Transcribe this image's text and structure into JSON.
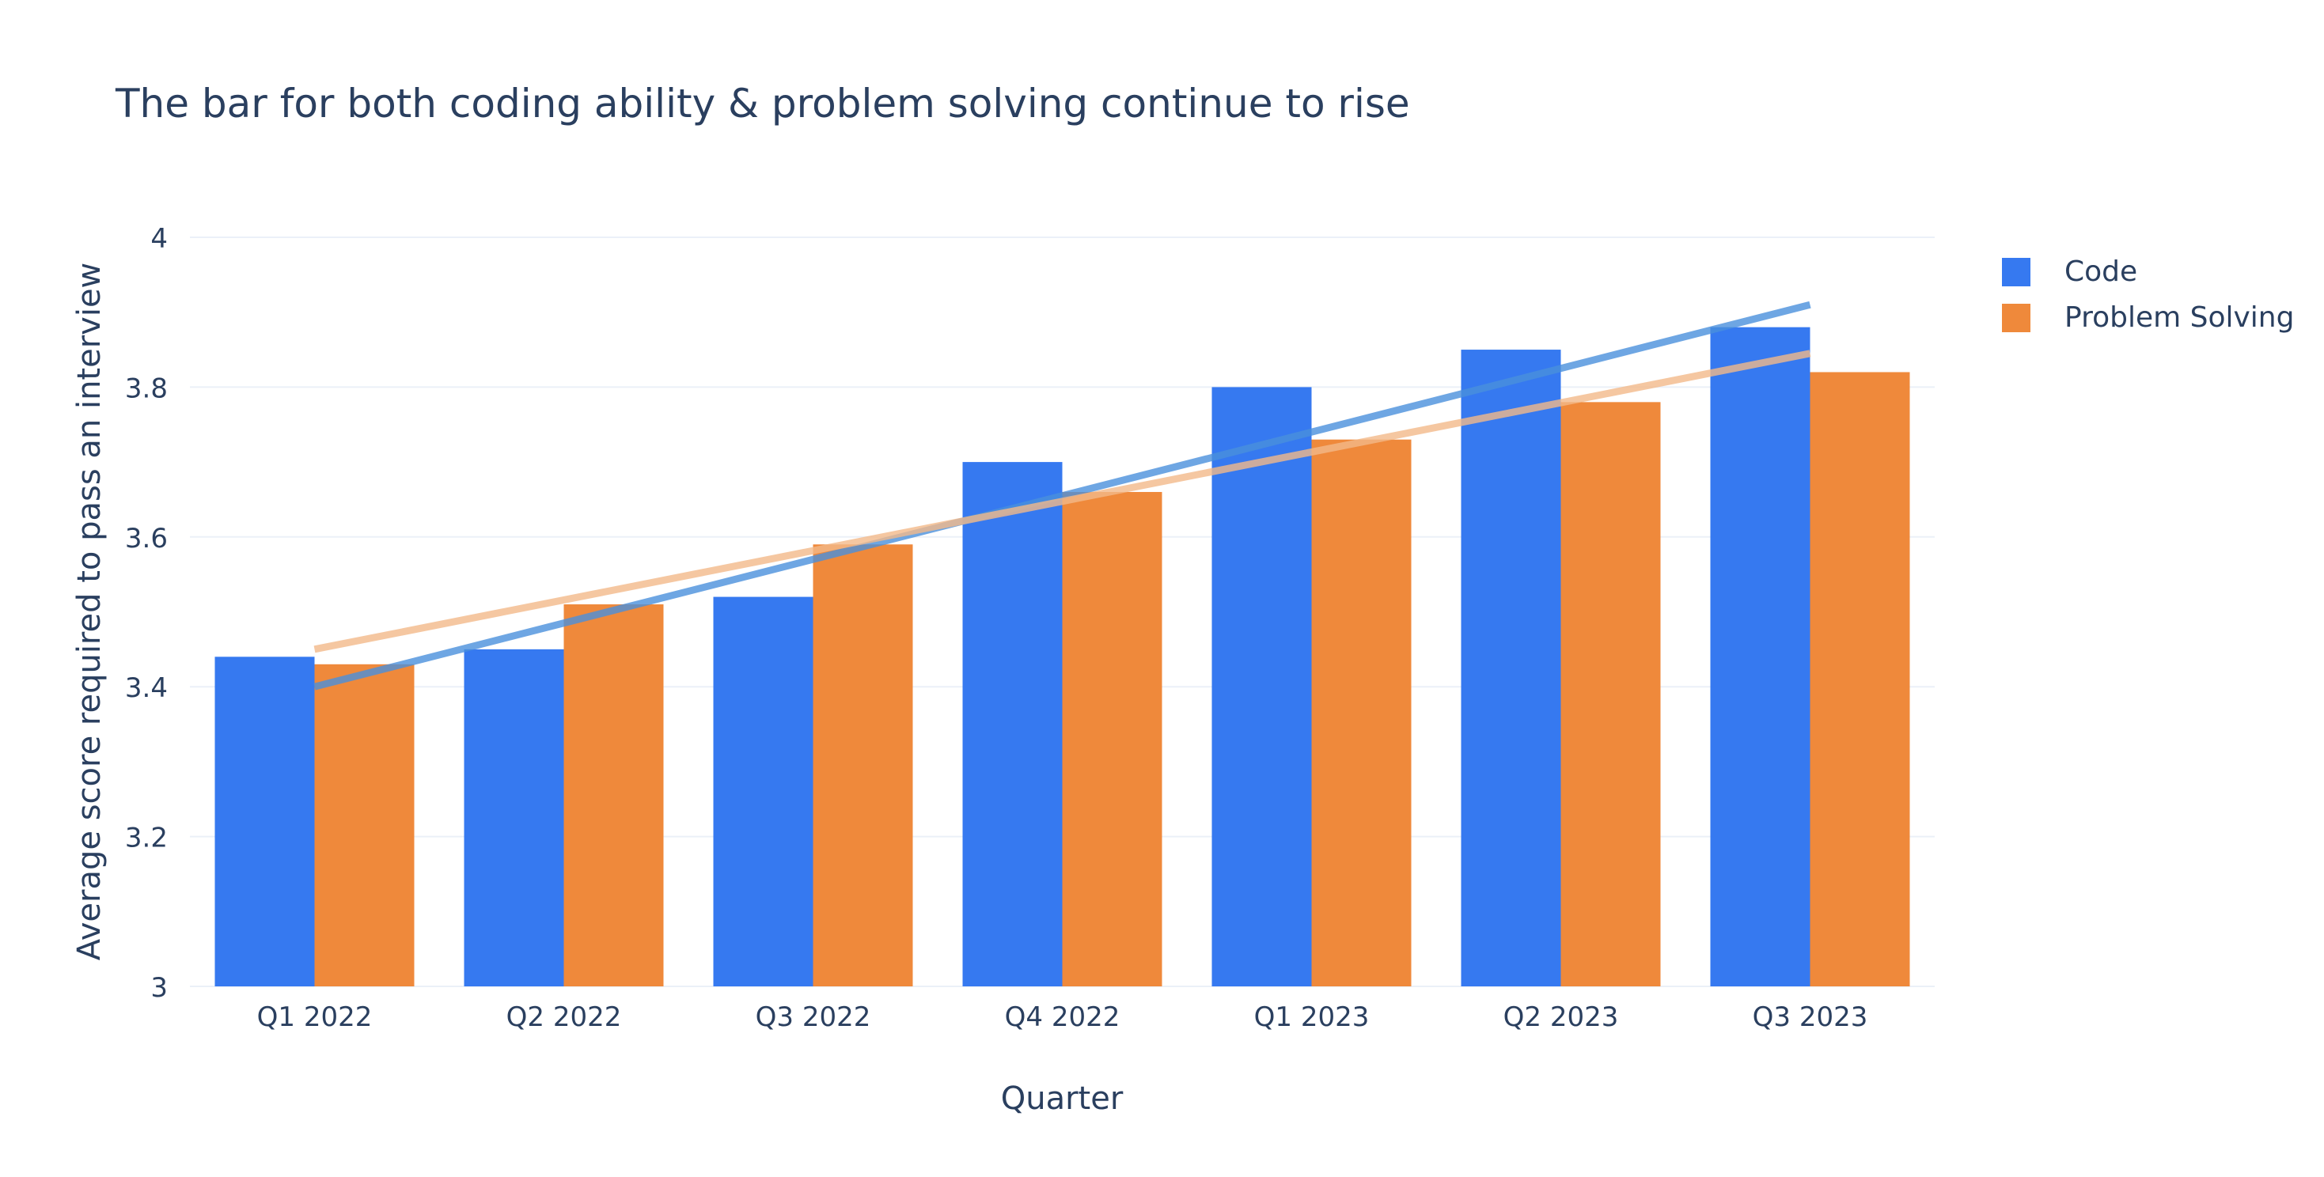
{
  "chart_data": {
    "type": "bar",
    "title": "The bar for both coding ability & problem solving continue to rise",
    "xlabel": "Quarter",
    "ylabel": "Average score required to pass an interview",
    "ylim": [
      3,
      4
    ],
    "yticks": [
      3,
      3.2,
      3.4,
      3.6,
      3.8,
      4
    ],
    "ytick_labels": [
      "3",
      "3.2",
      "3.4",
      "3.6",
      "3.8",
      "4"
    ],
    "grid": true,
    "legend_position": "top-right",
    "categories": [
      "Q1 2022",
      "Q2 2022",
      "Q3 2022",
      "Q4 2022",
      "Q1 2023",
      "Q2 2023",
      "Q3 2023"
    ],
    "series": [
      {
        "name": "Code",
        "color": "#3679f0",
        "values": [
          3.44,
          3.45,
          3.52,
          3.7,
          3.8,
          3.85,
          3.88
        ]
      },
      {
        "name": "Problem Solving",
        "color": "#ef893b",
        "values": [
          3.43,
          3.51,
          3.59,
          3.66,
          3.73,
          3.78,
          3.82
        ]
      }
    ],
    "trendlines": [
      {
        "series": "Code",
        "type": "linear",
        "color": "#4a90dc",
        "from": [
          "Q1 2022",
          3.4
        ],
        "to": [
          "Q3 2023",
          3.91
        ]
      },
      {
        "series": "Problem Solving",
        "type": "linear",
        "color": "#f2b98a",
        "from": [
          "Q1 2022",
          3.45
        ],
        "to": [
          "Q3 2023",
          3.845
        ]
      }
    ]
  }
}
